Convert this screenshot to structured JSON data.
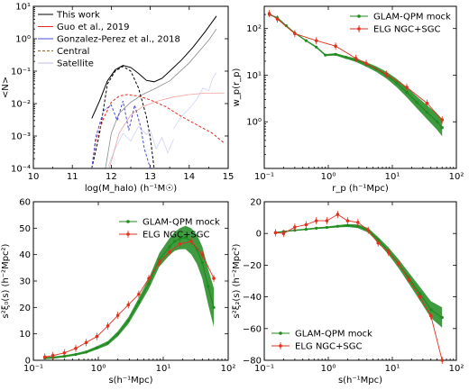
{
  "chart_data": [
    {
      "type": "line",
      "xlabel": "log(M_halo) (h⁻¹M☉)",
      "ylabel": "<N>",
      "xlim": [
        10,
        15
      ],
      "ylim": [
        0.0001,
        10
      ],
      "yscale": "log",
      "xticks": [
        "10",
        "11",
        "12",
        "13",
        "14",
        "15"
      ],
      "yticks": [
        "10⁻⁴",
        "10⁻³",
        "10⁻²",
        "10⁻¹",
        "10⁰",
        "10¹"
      ],
      "legend_position": "top-left",
      "series": [
        {
          "name": "This work",
          "color": "#000000",
          "style": "solid",
          "x": [
            11.5,
            11.7,
            11.9,
            12.1,
            12.3,
            12.5,
            12.7,
            12.9,
            13.1,
            13.3,
            13.5,
            13.8,
            14.1,
            14.4,
            14.7
          ],
          "y": [
            0.0035,
            0.012,
            0.05,
            0.11,
            0.15,
            0.13,
            0.085,
            0.052,
            0.047,
            0.06,
            0.1,
            0.22,
            0.55,
            1.6,
            5.0
          ]
        },
        {
          "name": "Guo et al., 2019",
          "color": "#e0301e",
          "style": "solid",
          "x": [],
          "y": []
        },
        {
          "name": "Gonzalez-Perez et al., 2018",
          "color": "#4b4bd8",
          "style": "solid",
          "x": [],
          "y": []
        },
        {
          "name": "Central",
          "color": "#8a6a2a",
          "style": "dashed",
          "x": [],
          "y": []
        },
        {
          "name": "Satellite",
          "color": "#c9b8e8",
          "style": "solid",
          "x": [],
          "y": []
        }
      ],
      "extra_curves": [
        {
          "color": "#000000",
          "style": "dashed",
          "x": [
            11.5,
            11.7,
            11.9,
            12.1,
            12.3,
            12.5,
            12.7,
            12.9,
            13.0,
            13.1
          ],
          "y": [
            0.0001,
            0.0012,
            0.04,
            0.1,
            0.14,
            0.1,
            0.03,
            0.004,
            0.0009,
            0.0001
          ]
        },
        {
          "color": "#000000",
          "style": "solid-light",
          "x": [
            11.85,
            12.0,
            12.2,
            12.5,
            12.8,
            13.1,
            13.5,
            14.0,
            14.5,
            14.7
          ],
          "y": [
            0.0001,
            0.0012,
            0.005,
            0.011,
            0.019,
            0.028,
            0.05,
            0.18,
            0.9,
            2.0
          ]
        },
        {
          "color": "#e0301e",
          "style": "dashed",
          "x": [
            11.5,
            11.6,
            11.8,
            12.0,
            12.2,
            12.4,
            12.7,
            13.0,
            13.4,
            13.8,
            14.2,
            14.6,
            14.9
          ],
          "y": [
            0.0001,
            0.0007,
            0.0035,
            0.011,
            0.017,
            0.019,
            0.017,
            0.013,
            0.008,
            0.004,
            0.0022,
            0.0012,
            0.0006
          ]
        },
        {
          "color": "#e0301e",
          "style": "solid-light",
          "x": [
            11.95,
            12.2,
            12.5,
            12.8,
            13.2,
            13.6,
            14.0,
            14.4,
            14.9
          ],
          "y": [
            0.0001,
            0.0012,
            0.0045,
            0.008,
            0.012,
            0.016,
            0.019,
            0.021,
            0.021
          ]
        },
        {
          "color": "#4b4bd8",
          "style": "dashed",
          "x": [
            11.5,
            11.6,
            11.8,
            12.0,
            12.15,
            12.3,
            12.45,
            12.6,
            12.75,
            12.85,
            13.0
          ],
          "y": [
            0.0001,
            0.0009,
            0.006,
            0.009,
            0.003,
            0.012,
            0.0015,
            0.009,
            0.002,
            0.0004,
            0.0001
          ]
        },
        {
          "color": "#9999e8",
          "style": "solid-light",
          "x": [
            11.9,
            12.1,
            12.3,
            12.5,
            12.7,
            12.9,
            13.0,
            13.15,
            13.3,
            13.45,
            13.6
          ],
          "y": [
            0.0001,
            0.0004,
            0.0012,
            0.0007,
            0.002,
            0.0011,
            0.0015,
            0.0004,
            0.0009,
            0.0003,
            0.0008
          ]
        },
        {
          "color": "#9999e8",
          "style": "solid-light",
          "x": [
            13.6,
            13.8,
            14.0,
            14.2,
            14.35,
            14.5,
            14.6,
            14.7
          ],
          "y": [
            0.0017,
            0.004,
            0.007,
            0.014,
            0.03,
            0.025,
            0.06,
            0.09
          ]
        }
      ]
    },
    {
      "type": "line",
      "xlabel": "r_p (h⁻¹Mpc)",
      "ylabel": "w_p(r_p)",
      "xlim": [
        0.1,
        100
      ],
      "ylim": [
        0.1,
        300
      ],
      "xscale": "log",
      "yscale": "log",
      "xticks": [
        "10⁻¹",
        "10⁰",
        "10¹",
        "10²"
      ],
      "yticks": [
        "10⁰",
        "10¹",
        "10²"
      ],
      "legend_position": "top-right",
      "series": [
        {
          "name": "GLAM-QPM mock",
          "color": "#1f8a1f",
          "x": [
            0.12,
            0.16,
            0.22,
            0.3,
            0.45,
            0.65,
            0.9,
            1.3,
            1.9,
            2.7,
            3.9,
            5.6,
            8.1,
            11.7,
            16.8,
            24.2,
            34.8,
            50.1,
            60
          ],
          "y": [
            200,
            170,
            115,
            80,
            55,
            40,
            27,
            28,
            24,
            21,
            17,
            13.5,
            10,
            6.8,
            4.3,
            2.6,
            1.6,
            1.0,
            0.75
          ]
        },
        {
          "name": "ELG NGC+SGC",
          "color": "#e0301e",
          "x": [
            0.12,
            0.16,
            0.3,
            0.65,
            1.3,
            2.7,
            3.9,
            8.1,
            16.8,
            34.8,
            60
          ],
          "y": [
            210,
            160,
            78,
            55,
            42,
            23,
            18,
            10.5,
            5.5,
            2.5,
            1.1
          ]
        }
      ]
    },
    {
      "type": "line",
      "xlabel": "s(h⁻¹Mpc)",
      "ylabel": "s²ξ₀(s) (h⁻²Mpc²)",
      "xlim": [
        0.1,
        100
      ],
      "ylim": [
        0,
        60
      ],
      "xscale": "log",
      "xticks": [
        "10⁻¹",
        "10⁰",
        "10¹",
        "10²"
      ],
      "yticks": [
        "0",
        "10",
        "20",
        "30",
        "40",
        "50",
        "60"
      ],
      "legend_position": "top-left",
      "series": [
        {
          "name": "GLAM-QPM mock",
          "color": "#1f8a1f",
          "x": [
            0.15,
            0.2,
            0.3,
            0.45,
            0.65,
            0.95,
            1.4,
            2.0,
            2.9,
            4.2,
            6.0,
            8.7,
            12.5,
            15,
            18,
            22,
            27,
            33,
            40,
            49,
            60
          ],
          "y": [
            0.8,
            1.0,
            1.5,
            2.2,
            3.1,
            4.7,
            6.5,
            10,
            15,
            22,
            29,
            38,
            43,
            45,
            46,
            46.5,
            45,
            42,
            37,
            28,
            20
          ]
        },
        {
          "name": "ELG NGC+SGC",
          "color": "#e0301e",
          "x": [
            0.15,
            0.2,
            0.3,
            0.45,
            0.65,
            0.95,
            1.4,
            2.0,
            2.9,
            4.2,
            6.0,
            8.7,
            12.5,
            18,
            27,
            40,
            60
          ],
          "y": [
            1.2,
            1.8,
            2.8,
            4.5,
            6.7,
            9,
            13,
            17,
            21,
            25,
            31,
            37,
            41,
            44,
            45,
            40,
            31
          ]
        }
      ]
    },
    {
      "type": "line",
      "xlabel": "s(h⁻¹Mpc)",
      "ylabel": "s²ξ₂(s) (h⁻²Mpc²)",
      "xlim": [
        0.1,
        100
      ],
      "ylim": [
        -80,
        20
      ],
      "xscale": "log",
      "xticks": [
        "10⁻¹",
        "10⁰",
        "10¹",
        "10²"
      ],
      "yticks": [
        "−80",
        "−60",
        "−40",
        "−20",
        "0",
        "20"
      ],
      "legend_position": "bottom-left",
      "series": [
        {
          "name": "GLAM-QPM mock",
          "color": "#1f8a1f",
          "x": [
            0.15,
            0.2,
            0.3,
            0.45,
            0.65,
            0.95,
            1.4,
            2.0,
            2.9,
            4.2,
            6.0,
            8.7,
            12.5,
            18,
            27,
            40,
            60
          ],
          "y": [
            0.5,
            1.2,
            2.0,
            2.6,
            3.3,
            3.8,
            4.5,
            5.0,
            4.5,
            2.0,
            -4,
            -11,
            -19,
            -28,
            -38,
            -48,
            -53
          ]
        },
        {
          "name": "ELG NGC+SGC",
          "color": "#e0301e",
          "x": [
            0.15,
            0.2,
            0.3,
            0.45,
            0.65,
            0.95,
            1.4,
            2.0,
            2.9,
            4.2,
            6.0,
            8.7,
            12.5,
            18,
            27,
            40,
            60
          ],
          "y": [
            0.5,
            0,
            4,
            5.5,
            8,
            8,
            12,
            8,
            7,
            2,
            -6,
            -12,
            -19,
            -29,
            -40,
            -52,
            -80
          ]
        }
      ]
    }
  ]
}
